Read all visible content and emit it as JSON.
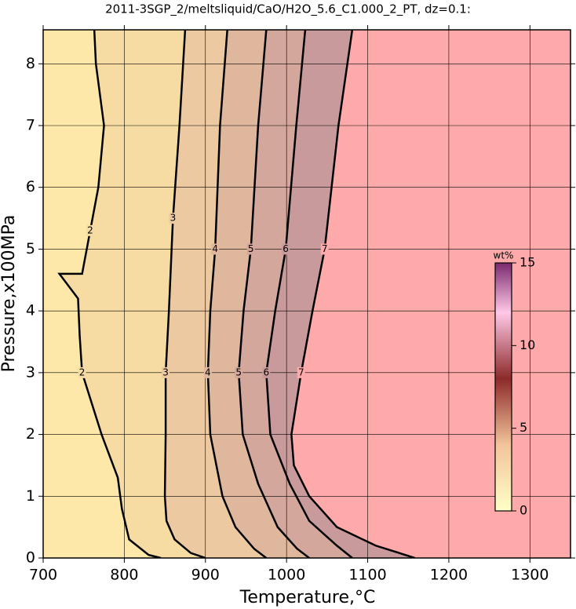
{
  "chart_data": {
    "type": "contour",
    "title": "2011-3SGP_2/meltsliquid/CaO/H2O_5.6_C1.000_2_PT, dz=0.1:",
    "x_label": "Temperature,°C",
    "y_label": "Pressure,x100MPa",
    "xlim": [
      700,
      1350
    ],
    "ylim": [
      0,
      8.55
    ],
    "xticks": [
      700,
      800,
      900,
      1000,
      1100,
      1200,
      1300
    ],
    "yticks": [
      0,
      1,
      2,
      3,
      4,
      5,
      6,
      7,
      8
    ],
    "grid": true,
    "background_color": "#fde8aa",
    "contours": [
      {
        "level": 2,
        "color": "#f6dca2",
        "x": [
          763,
          765,
          775,
          768,
          758,
          748,
          720,
          743,
          745,
          748,
          772,
          792,
          797,
          806,
          830,
          845
        ],
        "y": [
          8.55,
          8,
          7,
          6,
          5.3,
          4.6,
          4.6,
          4.2,
          3.6,
          3,
          2,
          1.3,
          0.8,
          0.3,
          0.05,
          0
        ]
      },
      {
        "level": 3,
        "color": "#ecc9a0",
        "x": [
          875,
          868,
          860,
          855,
          851,
          851,
          850,
          852,
          862,
          882,
          900
        ],
        "y": [
          8.55,
          7,
          5.5,
          4,
          3,
          2,
          1,
          0.6,
          0.3,
          0.08,
          0
        ]
      },
      {
        "level": 4,
        "color": "#dfb79d",
        "x": [
          927,
          918,
          912,
          906,
          903,
          906,
          921,
          937,
          960,
          975
        ],
        "y": [
          8.55,
          7,
          5,
          4,
          3,
          2,
          1,
          0.5,
          0.15,
          0
        ]
      },
      {
        "level": 5,
        "color": "#d3a79c",
        "x": [
          975,
          965,
          956,
          947,
          941,
          946,
          965,
          989,
          1013,
          1028
        ],
        "y": [
          8.55,
          7,
          5,
          4,
          3,
          2,
          1.2,
          0.5,
          0.15,
          0
        ]
      },
      {
        "level": 6,
        "color": "#c89a9b",
        "x": [
          1023,
          1012,
          999,
          986,
          975,
          980,
          1004,
          1028,
          1062,
          1081
        ],
        "y": [
          8.55,
          7,
          5,
          4,
          3,
          2,
          1.2,
          0.6,
          0.2,
          0
        ]
      },
      {
        "level": 7,
        "color": "#ffaaaa",
        "x": [
          1081,
          1064,
          1047,
          1032,
          1018,
          1006,
          1009,
          1028,
          1062,
          1110,
          1139,
          1158
        ],
        "y": [
          8.55,
          7,
          5,
          4,
          3,
          2,
          1.5,
          1,
          0.5,
          0.2,
          0.08,
          0
        ]
      }
    ],
    "colorbar": {
      "label": "wt%",
      "lim": [
        0,
        15
      ],
      "ticks": [
        0,
        5,
        10,
        15
      ],
      "stops": [
        {
          "value": 0,
          "color": "#ffffc8"
        },
        {
          "value": 4,
          "color": "#f2c49a"
        },
        {
          "value": 8,
          "color": "#8c2a2a"
        },
        {
          "value": 12,
          "color": "#ffc8e6"
        },
        {
          "value": 15,
          "color": "#7a2a6e"
        }
      ]
    }
  }
}
